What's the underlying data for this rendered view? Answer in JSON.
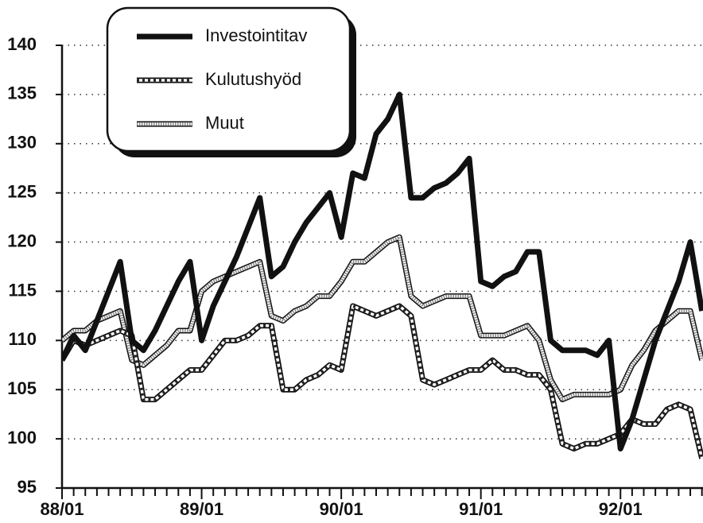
{
  "chart_data": {
    "type": "line",
    "categories": [
      "88/01",
      null,
      null,
      null,
      null,
      null,
      null,
      null,
      null,
      null,
      null,
      null,
      "89/01",
      null,
      null,
      null,
      null,
      null,
      null,
      null,
      null,
      null,
      null,
      null,
      "90/01",
      null,
      null,
      null,
      null,
      null,
      null,
      null,
      null,
      null,
      null,
      null,
      "91/01",
      null,
      null,
      null,
      null,
      null,
      null,
      null,
      null,
      null,
      null,
      null,
      "92/01",
      null,
      null,
      null,
      null,
      null,
      null,
      null
    ],
    "series": [
      {
        "name": "Investointitav",
        "color": "#111111",
        "style": "solid",
        "values": [
          108,
          110.5,
          109,
          112,
          115,
          118,
          110,
          109,
          111,
          113.5,
          116,
          118,
          110,
          113.5,
          116,
          118.5,
          121.5,
          124.5,
          116.5,
          117.5,
          120,
          122,
          123.5,
          125,
          120.5,
          127,
          126.5,
          131,
          132.5,
          135,
          124.5,
          124.5,
          125.5,
          126,
          127,
          128.5,
          116,
          115.5,
          116.5,
          117,
          119,
          119,
          110,
          109,
          109,
          109,
          108.5,
          110,
          99,
          102,
          106,
          110,
          113,
          116,
          120,
          113
        ]
      },
      {
        "name": "Kulutushyöd",
        "color": "#111111",
        "style": "dashed",
        "values": [
          108,
          110,
          109.5,
          110,
          110.5,
          111,
          110.5,
          104,
          104,
          105,
          106,
          107,
          107,
          108.5,
          110,
          110,
          110.5,
          111.5,
          111.5,
          105,
          105,
          106,
          106.5,
          107.5,
          107,
          113.5,
          113,
          112.5,
          113,
          113.5,
          112.5,
          106,
          105.5,
          106,
          106.5,
          107,
          107,
          108,
          107,
          107,
          106.5,
          106.5,
          105,
          99.5,
          99,
          99.5,
          99.5,
          100,
          100.5,
          102,
          101.5,
          101.5,
          103,
          103.5,
          103,
          98
        ]
      },
      {
        "name": "Muut",
        "color": "#111111",
        "style": "dotted",
        "values": [
          110,
          111,
          111,
          112,
          112.5,
          113,
          108,
          107.5,
          108.5,
          109.5,
          111,
          111,
          115,
          116,
          116.5,
          117,
          117.5,
          118,
          112.5,
          112,
          113,
          113.5,
          114.5,
          114.5,
          116,
          118,
          118,
          119,
          120,
          120.5,
          114.5,
          113.5,
          114,
          114.5,
          114.5,
          114.5,
          110.5,
          110.5,
          110.5,
          111,
          111.5,
          110,
          106,
          104,
          104.5,
          104.5,
          104.5,
          104.5,
          105,
          107.5,
          109,
          111,
          112,
          113,
          113,
          108
        ]
      }
    ],
    "ylim": [
      95,
      140
    ],
    "yticks": [
      95,
      100,
      105,
      110,
      115,
      120,
      125,
      130,
      135,
      140
    ],
    "grid": true,
    "legend": "top-left"
  }
}
